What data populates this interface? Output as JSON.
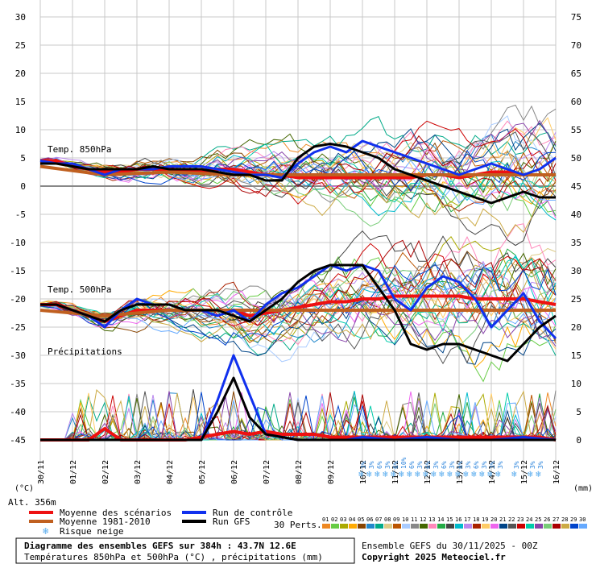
{
  "chart_data": {
    "type": "line",
    "left_axis": {
      "unit": "(°C)",
      "ticks": [
        "30",
        "25",
        "20",
        "15",
        "10",
        "5",
        "0",
        "-5",
        "-10",
        "-15",
        "-20",
        "-25",
        "-30",
        "-35",
        "-40",
        "-45"
      ],
      "range": [
        -45,
        30
      ]
    },
    "right_axis": {
      "unit": "(mm)",
      "ticks": [
        "75",
        "70",
        "65",
        "60",
        "55",
        "50",
        "45",
        "40",
        "35",
        "30",
        "25",
        "20",
        "15",
        "10",
        "5",
        "0"
      ],
      "range": [
        0,
        75
      ]
    },
    "x_axis": {
      "ticks": [
        "30/11",
        "01/12",
        "02/12",
        "03/12",
        "04/12",
        "05/12",
        "06/12",
        "07/12",
        "08/12",
        "09/12",
        "10/12",
        "11/12",
        "12/12",
        "13/12",
        "14/12",
        "15/12",
        "16/12"
      ],
      "range_hours": [
        0,
        384
      ]
    },
    "panel_labels": {
      "t850": "Temp. 850hPa",
      "t500": "Temp. 500hPa",
      "precip": "Précipitations"
    },
    "series": [
      {
        "name": "Moyenne des scénarios",
        "color": "#ee1111",
        "t850": {
          "hours": [
            0,
            12,
            24,
            36,
            48,
            60,
            72,
            84,
            96,
            108,
            120,
            132,
            144,
            156,
            168,
            180,
            192,
            204,
            216,
            228,
            240,
            252,
            264,
            276,
            288,
            300,
            312,
            324,
            336,
            348,
            360,
            372,
            384
          ],
          "values": [
            4.5,
            4.5,
            3.5,
            3,
            2.5,
            2.5,
            3,
            3,
            3,
            2.5,
            2.5,
            3,
            3,
            2.5,
            2,
            2,
            1.5,
            1.5,
            1.5,
            1.5,
            1.5,
            1.5,
            1.5,
            1.5,
            2,
            2,
            1.5,
            2,
            2.5,
            2.5,
            2,
            2,
            2
          ]
        },
        "t500": {
          "hours": [
            0,
            12,
            24,
            36,
            48,
            60,
            72,
            84,
            96,
            108,
            120,
            132,
            144,
            156,
            168,
            180,
            192,
            204,
            216,
            228,
            240,
            252,
            264,
            276,
            288,
            300,
            312,
            324,
            336,
            348,
            360,
            372,
            384
          ],
          "values": [
            -21,
            -21,
            -22,
            -23,
            -24,
            -23,
            -22,
            -22,
            -22,
            -22,
            -22,
            -22,
            -22,
            -23,
            -22.5,
            -22,
            -21.5,
            -21,
            -20.5,
            -20.5,
            -20,
            -20,
            -19.5,
            -19.5,
            -19.5,
            -19.5,
            -19.5,
            -20,
            -20,
            -20,
            -20,
            -20.5,
            -21
          ]
        },
        "precip": {
          "hours": [
            0,
            12,
            24,
            36,
            48,
            60,
            72,
            84,
            96,
            108,
            120,
            132,
            144,
            156,
            168,
            180,
            192,
            204,
            216,
            228,
            240,
            252,
            264,
            276,
            288,
            300,
            312,
            324,
            336,
            348,
            360,
            372,
            384
          ],
          "values": [
            0,
            0,
            0,
            0,
            2,
            0,
            0,
            0,
            0,
            0,
            0.5,
            1,
            1.5,
            1,
            1.5,
            1,
            1,
            1,
            0.5,
            0.5,
            0.5,
            0.5,
            0.5,
            0.5,
            0.5,
            0.5,
            0.5,
            0.5,
            0.5,
            0.5,
            0.5,
            0.5,
            0
          ]
        }
      },
      {
        "name": "Moyenne 1981-2010",
        "color": "#c06020",
        "t850": {
          "hours": [
            0,
            48,
            96,
            144,
            192,
            240,
            288,
            336,
            384
          ],
          "values": [
            3.5,
            2,
            2.5,
            2,
            2,
            2,
            2,
            2,
            2
          ]
        },
        "t500": {
          "hours": [
            0,
            48,
            96,
            144,
            192,
            240,
            288,
            336,
            384
          ],
          "values": [
            -22,
            -23,
            -22,
            -22,
            -22,
            -22,
            -22,
            -22,
            -22
          ]
        }
      },
      {
        "name": "Run de contrôle",
        "color": "#1030ee",
        "t850": {
          "hours": [
            0,
            12,
            24,
            36,
            48,
            60,
            72,
            84,
            96,
            108,
            120,
            132,
            144,
            156,
            168,
            180,
            192,
            204,
            216,
            228,
            240,
            252,
            264,
            276,
            288,
            300,
            312,
            324,
            336,
            348,
            360,
            372,
            384
          ],
          "values": [
            4.5,
            4,
            4,
            3,
            2,
            3,
            3,
            3,
            3.5,
            3.5,
            3.5,
            3,
            2.5,
            2,
            2,
            1.5,
            4,
            6,
            7,
            6,
            8,
            7,
            6,
            5,
            4,
            3,
            2,
            3,
            4,
            3,
            2,
            3,
            5
          ]
        },
        "t500": {
          "hours": [
            0,
            12,
            24,
            36,
            48,
            60,
            72,
            84,
            96,
            108,
            120,
            132,
            144,
            156,
            168,
            180,
            192,
            204,
            216,
            228,
            240,
            252,
            264,
            276,
            288,
            300,
            312,
            324,
            336,
            348,
            360,
            372,
            384
          ],
          "values": [
            -21,
            -21,
            -22,
            -23,
            -25,
            -22,
            -20,
            -21,
            -21,
            -22,
            -22,
            -23,
            -22,
            -24,
            -21,
            -19,
            -18,
            -16,
            -14,
            -15,
            -14,
            -15,
            -20,
            -22,
            -18,
            -16,
            -17,
            -20,
            -25,
            -22,
            -19,
            -24,
            -27
          ]
        },
        "precip": {
          "hours": [
            0,
            24,
            48,
            72,
            96,
            120,
            132,
            144,
            156,
            168,
            180,
            192,
            204,
            216,
            228,
            240,
            264,
            288,
            312,
            336,
            360,
            384
          ],
          "values": [
            0,
            0,
            0,
            0,
            0,
            0,
            7,
            15,
            8,
            1,
            0.5,
            0,
            0,
            0,
            0,
            0.5,
            0,
            0.5,
            0,
            0,
            0.5,
            0
          ]
        }
      },
      {
        "name": "Run GFS",
        "color": "#000000",
        "t850": {
          "hours": [
            0,
            12,
            24,
            36,
            48,
            60,
            72,
            84,
            96,
            108,
            120,
            132,
            144,
            156,
            168,
            180,
            192,
            204,
            216,
            228,
            240,
            252,
            264,
            276,
            288,
            300,
            312,
            324,
            336,
            348,
            360,
            372,
            384
          ],
          "values": [
            4,
            4,
            3.5,
            3,
            3,
            3,
            3,
            3.5,
            3,
            3,
            3,
            2.5,
            2,
            2,
            1,
            1,
            5,
            7,
            7.5,
            7,
            6,
            5,
            3,
            2,
            1,
            0,
            -1,
            -2,
            -3,
            -2,
            -1,
            -2,
            -2
          ]
        },
        "t500": {
          "hours": [
            0,
            12,
            24,
            36,
            48,
            60,
            72,
            84,
            96,
            108,
            120,
            132,
            144,
            156,
            168,
            180,
            192,
            204,
            216,
            228,
            240,
            252,
            264,
            276,
            288,
            300,
            312,
            324,
            336,
            348,
            360,
            372,
            384
          ],
          "values": [
            -21,
            -21,
            -22,
            -23,
            -24,
            -22,
            -21,
            -21,
            -21,
            -22,
            -22,
            -22,
            -23,
            -24,
            -22,
            -20,
            -17,
            -15,
            -14,
            -14,
            -14,
            -18,
            -22,
            -28,
            -29,
            -28,
            -28,
            -29,
            -30,
            -31,
            -28,
            -25,
            -23
          ]
        },
        "precip": {
          "hours": [
            0,
            48,
            96,
            120,
            132,
            144,
            156,
            168,
            192,
            240,
            288,
            336,
            384
          ],
          "values": [
            0,
            0,
            0,
            0,
            5,
            11,
            4,
            1,
            0,
            0,
            0,
            0,
            0
          ]
        }
      }
    ],
    "snow_risk": {
      "label": "Risque neige",
      "hours": [
        240,
        246,
        252,
        258,
        264,
        270,
        276,
        282,
        288,
        294,
        300,
        306,
        312,
        318,
        324,
        330,
        336,
        342,
        354,
        366,
        372
      ],
      "percent": [
        "3%",
        "3%",
        "6%",
        "3%",
        "6%",
        "10%",
        "6%",
        "3%",
        "6%",
        "3%",
        "6%",
        "3%",
        "6%",
        "3%",
        "6%",
        "3%",
        "3%",
        "3%",
        "3%",
        "3%",
        "3%"
      ]
    },
    "perturbation_colors": [
      "#ee8822",
      "#66cc44",
      "#aaaa00",
      "#ffaa00",
      "#884400",
      "#2288cc",
      "#00aa88",
      "#ddcc88",
      "#bb5500",
      "#aaccff",
      "#888888",
      "#446600",
      "#ff88bb",
      "#22aa44",
      "#444444",
      "#00bbcc",
      "#bb88ee",
      "#aa2200",
      "#ffcc66",
      "#ee66ee",
      "#004488",
      "#555555",
      "#cc0000",
      "#00ccaa",
      "#8844aa",
      "#77cc77",
      "#aa0000",
      "#ccaa44",
      "#0044cc",
      "#66aaff"
    ]
  },
  "legend": {
    "alt": "Alt. 356m",
    "perts_label": "30 Perts.",
    "pert_numbers": [
      "01",
      "02",
      "03",
      "04",
      "05",
      "06",
      "07",
      "08",
      "09",
      "10",
      "11",
      "12",
      "13",
      "14",
      "15",
      "16",
      "17",
      "18",
      "19",
      "20",
      "21",
      "22",
      "23",
      "24",
      "25",
      "26",
      "27",
      "28",
      "29",
      "30"
    ]
  },
  "footer": {
    "title": "Diagramme des ensembles GEFS sur 384h : 43.7N 12.6E",
    "subtitle": "Températures 850hPa et 500hPa (°C) , précipitations (mm)",
    "run": "Ensemble GEFS du 30/11/2025 - 00Z",
    "copyright": "Copyright 2025 Meteociel.fr"
  }
}
